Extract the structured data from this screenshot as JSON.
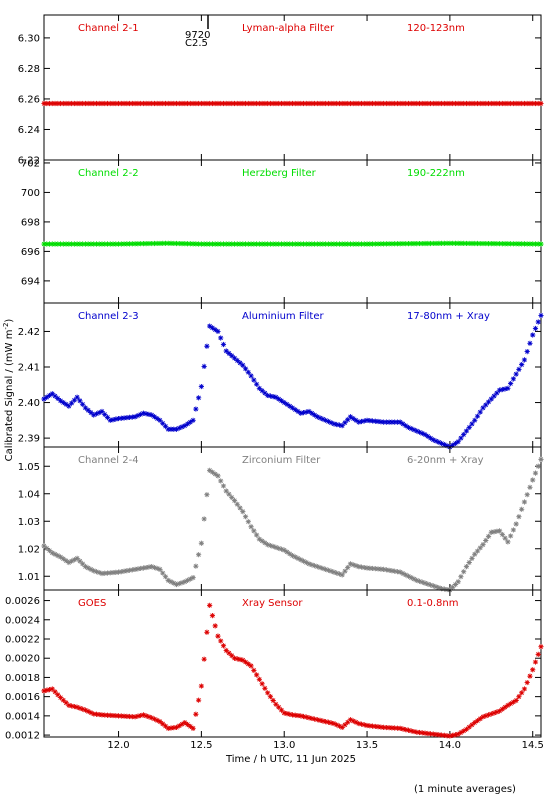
{
  "figure": {
    "ylabel": "Calibrated Signal / (mW m",
    "ylabel_sup": "-2",
    "ylabel_end": ")",
    "xlabel": "Time / h UTC, 11 Jun 2025",
    "footnote": "(1 minute averages)",
    "flare_annotation": {
      "time": "0.55",
      "top": "9720",
      "bottom": "C2.5"
    },
    "xlim": [
      11.55,
      14.55
    ],
    "xticks": [
      12.0,
      12.5,
      13.0,
      13.5,
      14.0,
      14.5
    ]
  },
  "chart_data": [
    {
      "type": "scatter",
      "channel": "Channel 2-1",
      "filter": "Lyman-alpha Filter",
      "band": "120-123nm",
      "color": "#dd0000",
      "ylim": [
        6.22,
        6.315
      ],
      "yticks": [
        "6.22",
        "6.24",
        "6.26",
        "6.28",
        "6.30"
      ],
      "series": [
        {
          "points": [
            [
              11.55,
              6.257
            ],
            [
              12.0,
              6.257
            ],
            [
              12.5,
              6.257
            ],
            [
              13.0,
              6.257
            ],
            [
              13.5,
              6.257
            ],
            [
              14.0,
              6.257
            ],
            [
              14.55,
              6.257
            ]
          ]
        }
      ]
    },
    {
      "type": "scatter",
      "channel": "Channel 2-2",
      "filter": "Herzberg Filter",
      "band": "190-222nm",
      "color": "#00dd00",
      "ylim": [
        692.5,
        702.2
      ],
      "yticks": [
        "694",
        "696",
        "698",
        "700",
        "702"
      ],
      "series": [
        {
          "points": [
            [
              11.55,
              696.5
            ],
            [
              12.0,
              696.5
            ],
            [
              12.3,
              696.55
            ],
            [
              12.5,
              696.5
            ],
            [
              13.0,
              696.5
            ],
            [
              13.5,
              696.5
            ],
            [
              14.0,
              696.55
            ],
            [
              14.55,
              696.5
            ]
          ]
        }
      ]
    },
    {
      "type": "scatter",
      "channel": "Channel 2-3",
      "filter": "Aluminium Filter",
      "band": "17-80nm + Xray",
      "color": "#0000cc",
      "ylim": [
        2.3875,
        2.428
      ],
      "yticks": [
        "2.39",
        "2.40",
        "2.41",
        "2.42"
      ],
      "series": [
        {
          "points": [
            [
              11.55,
              2.401
            ],
            [
              11.6,
              2.4025
            ],
            [
              11.65,
              2.4005
            ],
            [
              11.7,
              2.399
            ],
            [
              11.75,
              2.4015
            ],
            [
              11.8,
              2.3985
            ],
            [
              11.85,
              2.3965
            ],
            [
              11.9,
              2.3975
            ],
            [
              11.95,
              2.395
            ],
            [
              12.0,
              2.3955
            ],
            [
              12.1,
              2.396
            ],
            [
              12.15,
              2.397
            ],
            [
              12.2,
              2.3965
            ],
            [
              12.25,
              2.395
            ],
            [
              12.3,
              2.3925
            ],
            [
              12.35,
              2.3925
            ],
            [
              12.4,
              2.3935
            ],
            [
              12.45,
              2.395
            ],
            [
              12.5,
              2.4045
            ],
            [
              12.55,
              2.4215
            ],
            [
              12.6,
              2.42
            ],
            [
              12.65,
              2.4145
            ],
            [
              12.7,
              2.4125
            ],
            [
              12.75,
              2.4105
            ],
            [
              12.8,
              2.4075
            ],
            [
              12.85,
              2.404
            ],
            [
              12.9,
              2.402
            ],
            [
              12.95,
              2.4015
            ],
            [
              13.0,
              2.4
            ],
            [
              13.05,
              2.3985
            ],
            [
              13.1,
              2.397
            ],
            [
              13.15,
              2.3975
            ],
            [
              13.2,
              2.396
            ],
            [
              13.25,
              2.395
            ],
            [
              13.3,
              2.394
            ],
            [
              13.35,
              2.3935
            ],
            [
              13.4,
              2.396
            ],
            [
              13.45,
              2.3945
            ],
            [
              13.5,
              2.395
            ],
            [
              13.6,
              2.3945
            ],
            [
              13.7,
              2.3945
            ],
            [
              13.75,
              2.393
            ],
            [
              13.8,
              2.392
            ],
            [
              13.85,
              2.391
            ],
            [
              13.9,
              2.3895
            ],
            [
              13.95,
              2.3885
            ],
            [
              14.0,
              2.3875
            ],
            [
              14.05,
              2.389
            ],
            [
              14.1,
              2.392
            ],
            [
              14.15,
              2.395
            ],
            [
              14.2,
              2.3985
            ],
            [
              14.25,
              2.401
            ],
            [
              14.3,
              2.4035
            ],
            [
              14.35,
              2.404
            ],
            [
              14.4,
              2.408
            ],
            [
              14.45,
              2.412
            ],
            [
              14.5,
              2.419
            ],
            [
              14.55,
              2.4245
            ]
          ]
        }
      ]
    },
    {
      "type": "scatter",
      "channel": "Channel 2-4",
      "filter": "Zirconium Filter",
      "band": "6-20nm + Xray",
      "color": "#808080",
      "ylim": [
        1.005,
        1.057
      ],
      "yticks": [
        "1.01",
        "1.02",
        "1.03",
        "1.04",
        "1.05"
      ],
      "series": [
        {
          "points": [
            [
              11.55,
              1.021
            ],
            [
              11.6,
              1.0185
            ],
            [
              11.65,
              1.017
            ],
            [
              11.7,
              1.015
            ],
            [
              11.75,
              1.0165
            ],
            [
              11.8,
              1.0135
            ],
            [
              11.85,
              1.012
            ],
            [
              11.9,
              1.011
            ],
            [
              12.0,
              1.0115
            ],
            [
              12.1,
              1.0125
            ],
            [
              12.2,
              1.0135
            ],
            [
              12.25,
              1.0125
            ],
            [
              12.3,
              1.0085
            ],
            [
              12.35,
              1.007
            ],
            [
              12.4,
              1.008
            ],
            [
              12.45,
              1.0095
            ],
            [
              12.5,
              1.022
            ],
            [
              12.55,
              1.0485
            ],
            [
              12.6,
              1.0465
            ],
            [
              12.65,
              1.041
            ],
            [
              12.7,
              1.0375
            ],
            [
              12.75,
              1.0335
            ],
            [
              12.8,
              1.028
            ],
            [
              12.85,
              1.0235
            ],
            [
              12.9,
              1.0215
            ],
            [
              13.0,
              1.0195
            ],
            [
              13.05,
              1.0175
            ],
            [
              13.1,
              1.016
            ],
            [
              13.15,
              1.0145
            ],
            [
              13.2,
              1.0135
            ],
            [
              13.25,
              1.0125
            ],
            [
              13.3,
              1.0115
            ],
            [
              13.35,
              1.0105
            ],
            [
              13.4,
              1.0145
            ],
            [
              13.45,
              1.0135
            ],
            [
              13.5,
              1.013
            ],
            [
              13.6,
              1.0125
            ],
            [
              13.7,
              1.0115
            ],
            [
              13.75,
              1.01
            ],
            [
              13.8,
              1.0085
            ],
            [
              13.85,
              1.0075
            ],
            [
              13.9,
              1.0065
            ],
            [
              13.95,
              1.0055
            ],
            [
              14.0,
              1.005
            ],
            [
              14.05,
              1.008
            ],
            [
              14.1,
              1.0135
            ],
            [
              14.15,
              1.018
            ],
            [
              14.2,
              1.0215
            ],
            [
              14.25,
              1.026
            ],
            [
              14.3,
              1.0265
            ],
            [
              14.35,
              1.0225
            ],
            [
              14.4,
              1.029
            ],
            [
              14.45,
              1.037
            ],
            [
              14.5,
              1.045
            ],
            [
              14.55,
              1.0525
            ]
          ]
        }
      ]
    },
    {
      "type": "scatter",
      "channel": "GOES",
      "filter": "Xray Sensor",
      "band": "0.1-0.8nm",
      "color": "#dd0000",
      "ylim": [
        0.00118,
        0.00271
      ],
      "yticks": [
        "0.0012",
        "0.0014",
        "0.0016",
        "0.0018",
        "0.0020",
        "0.0022",
        "0.0024",
        "0.0026"
      ],
      "series": [
        {
          "points": [
            [
              11.55,
              0.00166
            ],
            [
              11.6,
              0.00168
            ],
            [
              11.65,
              0.00159
            ],
            [
              11.7,
              0.00151
            ],
            [
              11.75,
              0.00149
            ],
            [
              11.8,
              0.00146
            ],
            [
              11.85,
              0.00142
            ],
            [
              11.9,
              0.00141
            ],
            [
              12.0,
              0.0014
            ],
            [
              12.1,
              0.00139
            ],
            [
              12.15,
              0.00141
            ],
            [
              12.2,
              0.00138
            ],
            [
              12.25,
              0.00134
            ],
            [
              12.3,
              0.00127
            ],
            [
              12.35,
              0.00128
            ],
            [
              12.4,
              0.00133
            ],
            [
              12.45,
              0.00127
            ],
            [
              12.5,
              0.00171
            ],
            [
              12.55,
              0.00255
            ],
            [
              12.6,
              0.00223
            ],
            [
              12.65,
              0.00208
            ],
            [
              12.7,
              0.002
            ],
            [
              12.75,
              0.00198
            ],
            [
              12.8,
              0.00192
            ],
            [
              12.85,
              0.00178
            ],
            [
              12.9,
              0.00164
            ],
            [
              12.95,
              0.00152
            ],
            [
              13.0,
              0.00143
            ],
            [
              13.05,
              0.00141
            ],
            [
              13.1,
              0.0014
            ],
            [
              13.15,
              0.00138
            ],
            [
              13.2,
              0.00136
            ],
            [
              13.25,
              0.00134
            ],
            [
              13.3,
              0.00132
            ],
            [
              13.35,
              0.00128
            ],
            [
              13.4,
              0.00136
            ],
            [
              13.45,
              0.00132
            ],
            [
              13.5,
              0.0013
            ],
            [
              13.6,
              0.00128
            ],
            [
              13.7,
              0.00127
            ],
            [
              13.75,
              0.00125
            ],
            [
              13.8,
              0.00123
            ],
            [
              13.85,
              0.00122
            ],
            [
              13.9,
              0.00121
            ],
            [
              13.95,
              0.0012
            ],
            [
              14.0,
              0.00119
            ],
            [
              14.05,
              0.00121
            ],
            [
              14.1,
              0.00126
            ],
            [
              14.15,
              0.00133
            ],
            [
              14.2,
              0.00139
            ],
            [
              14.25,
              0.00142
            ],
            [
              14.3,
              0.00145
            ],
            [
              14.35,
              0.00151
            ],
            [
              14.4,
              0.00156
            ],
            [
              14.45,
              0.00168
            ],
            [
              14.5,
              0.00188
            ],
            [
              14.55,
              0.00212
            ]
          ]
        }
      ]
    }
  ]
}
